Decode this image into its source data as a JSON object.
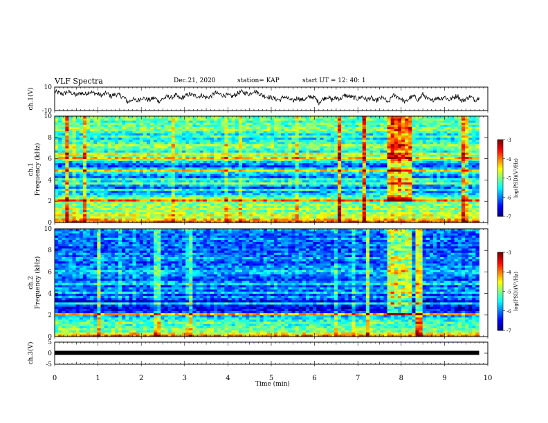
{
  "header": {
    "title": "VLF Spectra",
    "date": "Dec.21, 2020",
    "station": "station= KAP",
    "start": "start  UT =   12: 40: 1"
  },
  "chart_data": [
    {
      "type": "line",
      "ylabel": "ch.1(V)",
      "ylim": [
        -10,
        10
      ],
      "yticks": [
        "10",
        "-10"
      ],
      "x": [
        0.0,
        0.1,
        0.2,
        0.3,
        0.4,
        0.5,
        0.6,
        0.7,
        0.8,
        0.9,
        1.0,
        1.1,
        1.2,
        1.3,
        1.4,
        1.5,
        1.6,
        1.7,
        1.8,
        1.9,
        2.0,
        2.1,
        2.2,
        2.3,
        2.4,
        2.5,
        2.6,
        2.7,
        2.8,
        2.9,
        3.0,
        3.1,
        3.2,
        3.3,
        3.4,
        3.5,
        3.6,
        3.7,
        3.8,
        3.9,
        4.0,
        4.1,
        4.2,
        4.3,
        4.4,
        4.5,
        4.6,
        4.7,
        4.8,
        4.9,
        5.0,
        5.1,
        5.2,
        5.3,
        5.4,
        5.5,
        5.6,
        5.7,
        5.8,
        5.9,
        6.0,
        6.1,
        6.2,
        6.3,
        6.4,
        6.5,
        6.6,
        6.7,
        6.8,
        6.9,
        7.0,
        7.1,
        7.2,
        7.3,
        7.4,
        7.5,
        7.6,
        7.7,
        7.8,
        7.9,
        8.0,
        8.1,
        8.2,
        8.3,
        8.4,
        8.5,
        8.6,
        8.7,
        8.8,
        8.9,
        9.0,
        9.1,
        9.2,
        9.3,
        9.4,
        9.5,
        9.6,
        9.7,
        9.8
      ],
      "y": [
        6,
        5,
        4,
        6,
        5,
        3,
        5,
        4,
        6,
        5,
        4,
        3,
        5,
        2,
        4,
        3,
        1,
        -3,
        0,
        -2,
        1,
        0,
        -1,
        1,
        -2,
        0,
        2,
        1,
        3,
        0,
        2,
        4,
        3,
        2,
        3,
        1,
        2,
        5,
        4,
        3,
        3,
        2,
        4,
        6,
        5,
        4,
        7,
        5,
        3,
        2,
        1,
        0,
        -1,
        2,
        0,
        -2,
        1,
        -1,
        0,
        2,
        1,
        -3,
        0,
        2,
        -1,
        1,
        0,
        3,
        2,
        1,
        0,
        2,
        -1,
        1,
        -2,
        0,
        1,
        -4,
        3,
        2,
        0,
        -3,
        1,
        2,
        -1,
        4,
        0,
        -2,
        1,
        0,
        2,
        -1,
        1,
        3,
        -2,
        0,
        2,
        -1,
        1
      ]
    },
    {
      "type": "heatmap",
      "ylabel": "ch.1\nFrequency (kHz)",
      "ylim": [
        0,
        10
      ],
      "yticks": [
        "0",
        "2",
        "4",
        "6",
        "8",
        "10"
      ],
      "colorbar": {
        "label": "log(PSD)(V²/Hz)",
        "range": [
          -7,
          -3
        ],
        "ticks": [
          "-3",
          "-4",
          "-5",
          "-6",
          "-7"
        ]
      },
      "band_khz": [
        0.0,
        0.2,
        0.4,
        0.6,
        0.8,
        1.0,
        1.2,
        1.4,
        1.6,
        1.8,
        2.0,
        2.2,
        2.4,
        2.6,
        2.8,
        3.0,
        3.2,
        3.4,
        3.6,
        3.8,
        4.0,
        4.2,
        4.4,
        4.6,
        4.8,
        5.0,
        5.2,
        5.4,
        5.6,
        5.8,
        6.0,
        6.2,
        6.4,
        6.6,
        6.8,
        7.0,
        7.2,
        7.4,
        7.6,
        7.8,
        8.0,
        8.2,
        8.4,
        8.6,
        8.8,
        9.0,
        9.2,
        9.4,
        9.6,
        9.8
      ],
      "log_psd": [
        -3.8,
        -4.2,
        -4.8,
        -4.6,
        -4.9,
        -5.0,
        -4.7,
        -5.0,
        -4.9,
        -5.1,
        -3.9,
        -4.9,
        -5.3,
        -5.6,
        -5.9,
        -5.4,
        -6.2,
        -5.8,
        -5.0,
        -5.5,
        -5.3,
        -6.1,
        -5.8,
        -5.5,
        -4.4,
        -5.6,
        -6.2,
        -6.0,
        -5.7,
        -5.2,
        -4.3,
        -5.0,
        -4.6,
        -5.5,
        -5.2,
        -5.0,
        -4.8,
        -5.3,
        -5.4,
        -5.6,
        -5.2,
        -5.6,
        -5.3,
        -5.0,
        -4.9,
        -5.2,
        -5.1,
        -5.3,
        -5.0,
        -5.1
      ],
      "event_range_min": [
        7.6,
        8.2
      ]
    },
    {
      "type": "heatmap",
      "ylabel": "ch.2\nFrequency (kHz)",
      "ylim": [
        0,
        10
      ],
      "yticks": [
        "0",
        "2",
        "4",
        "6",
        "8",
        "10"
      ],
      "colorbar": {
        "label": "log(PSD)(V²/Hz)",
        "range": [
          -7,
          -3
        ],
        "ticks": [
          "-3",
          "-4",
          "-5",
          "-6",
          "-7"
        ]
      },
      "band_khz": [
        0.0,
        0.2,
        0.4,
        0.6,
        0.8,
        1.0,
        1.2,
        1.4,
        1.6,
        1.8,
        2.0,
        2.2,
        2.4,
        2.6,
        2.8,
        3.0,
        3.2,
        3.4,
        3.6,
        3.8,
        4.0,
        4.2,
        4.4,
        4.6,
        4.8,
        5.0,
        5.2,
        5.4,
        5.6,
        5.8,
        6.0,
        6.2,
        6.4,
        6.6,
        6.8,
        7.0,
        7.2,
        7.4,
        7.6,
        7.8,
        8.0,
        8.2,
        8.4,
        8.6,
        8.8,
        9.0,
        9.2,
        9.4,
        9.6,
        9.8
      ],
      "log_psd": [
        -4.0,
        -4.5,
        -5.1,
        -5.0,
        -5.2,
        -5.3,
        -5.1,
        -5.4,
        -5.5,
        -5.8,
        -4.2,
        -6.3,
        -6.5,
        -6.6,
        -6.4,
        -5.5,
        -6.6,
        -6.2,
        -5.9,
        -6.3,
        -5.6,
        -6.1,
        -5.9,
        -6.2,
        -5.5,
        -5.9,
        -6.3,
        -6.1,
        -6.0,
        -5.8,
        -5.6,
        -6.0,
        -5.9,
        -6.1,
        -6.2,
        -6.0,
        -5.8,
        -6.1,
        -6.0,
        -6.2,
        -6.1,
        -6.3,
        -6.0,
        -6.2,
        -6.1,
        -5.9,
        -6.2,
        -6.1,
        -6.0,
        -5.9
      ],
      "event_range_min": [
        7.6,
        8.2
      ]
    },
    {
      "type": "line",
      "ylabel": "ch.3(V)",
      "ylim": [
        -5,
        5
      ],
      "yticks": [
        "5",
        "0",
        "-5"
      ],
      "x": [
        0,
        9.8
      ],
      "y": [
        0,
        0
      ]
    }
  ],
  "time_axis": {
    "label": "Time  (min)",
    "ticks": [
      "0",
      "1",
      "2",
      "3",
      "4",
      "5",
      "6",
      "7",
      "8",
      "9",
      "10"
    ],
    "range": [
      0,
      10
    ]
  }
}
